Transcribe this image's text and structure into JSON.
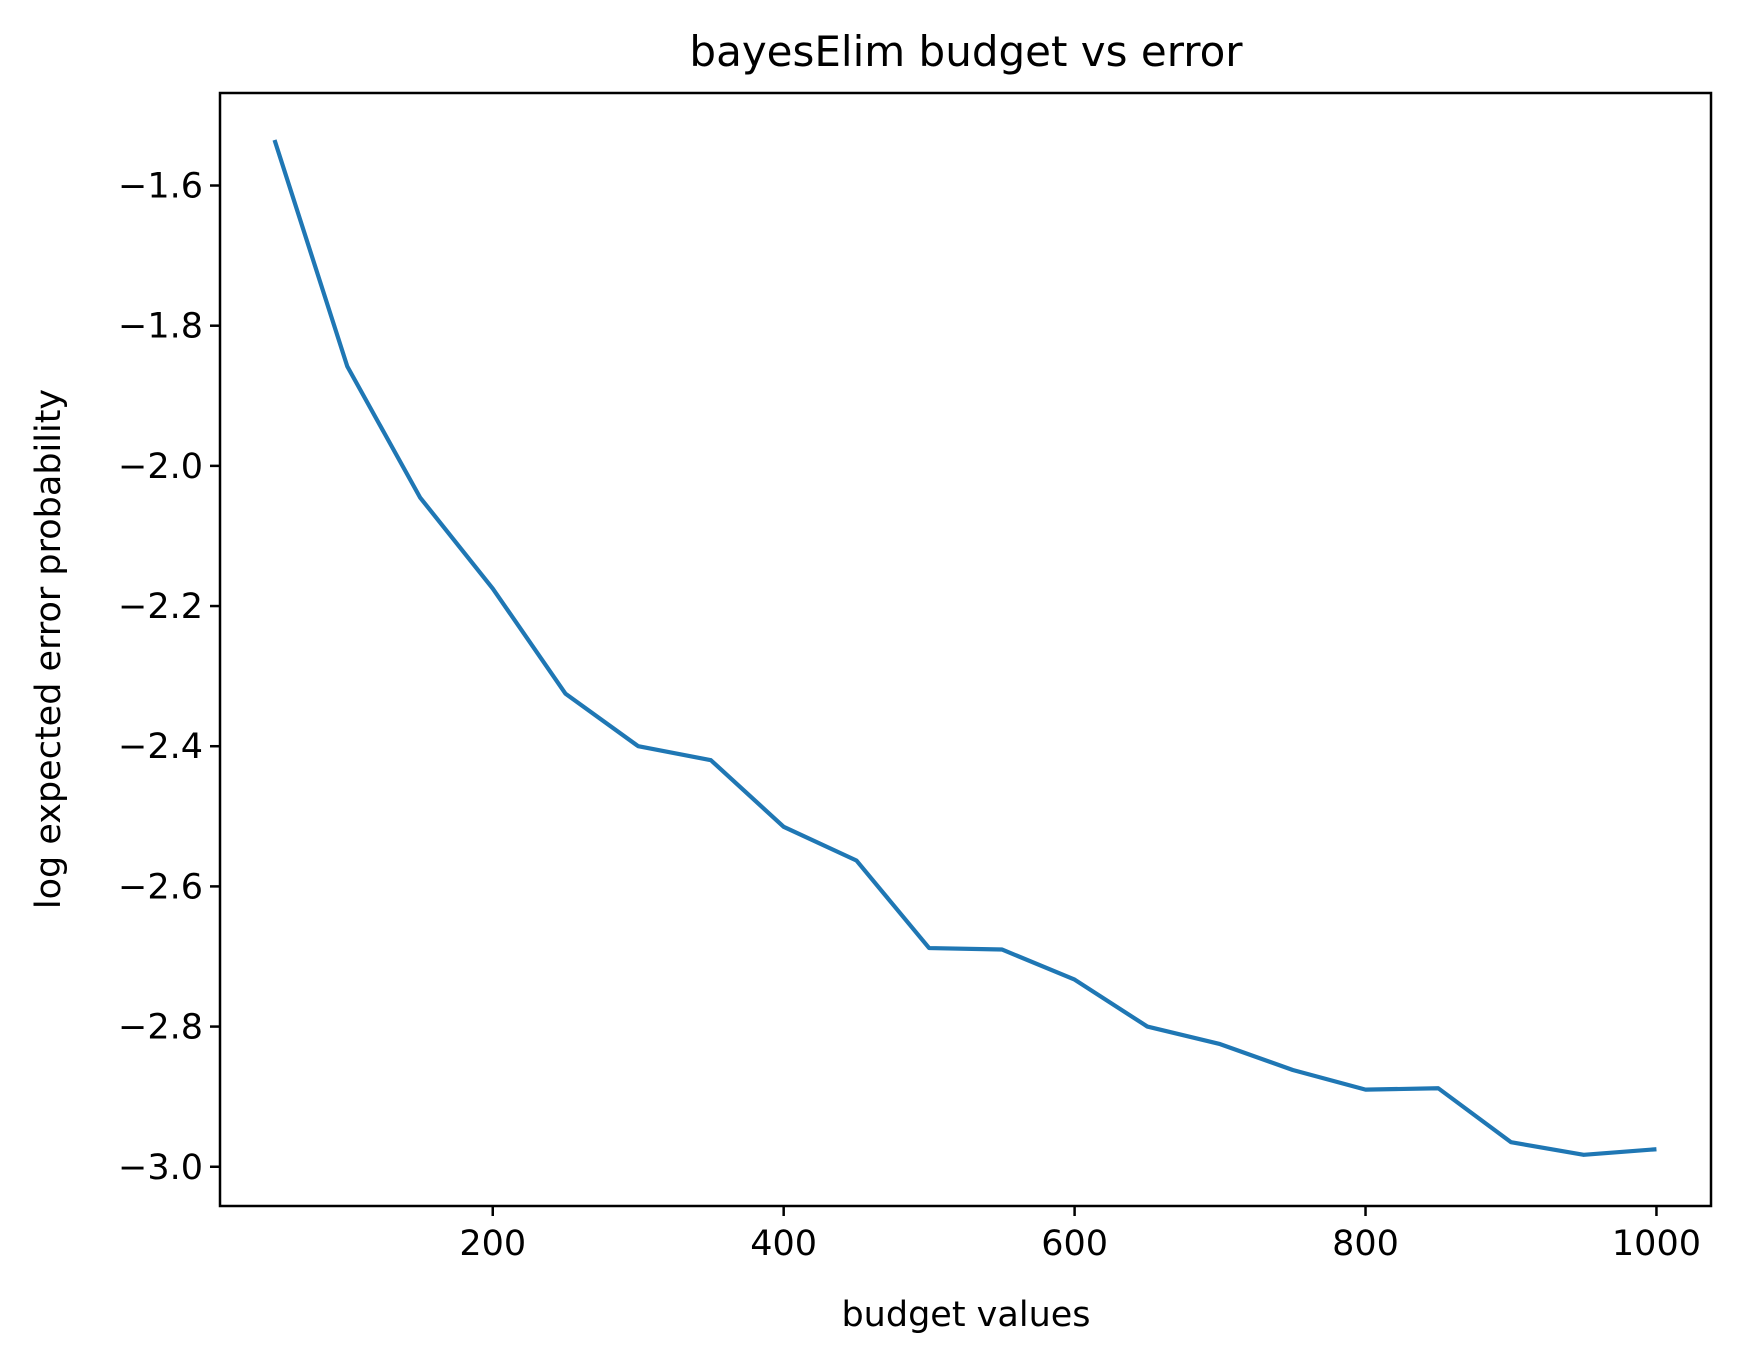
{
  "chart_data": {
    "type": "line",
    "title": "bayesElim budget vs error",
    "xlabel": "budget values",
    "ylabel": "log expected error probability",
    "xlim": [
      12.5,
      1037.5
    ],
    "ylim": [
      -3.056,
      -1.468
    ],
    "xticks": [
      200,
      400,
      600,
      800,
      1000
    ],
    "xtick_labels": [
      "200",
      "400",
      "600",
      "800",
      "1000"
    ],
    "yticks": [
      -1.6,
      -1.8,
      -2.0,
      -2.2,
      -2.4,
      -2.6,
      -2.8,
      -3.0
    ],
    "ytick_labels": [
      "−1.6",
      "−1.8",
      "−2.0",
      "−2.2",
      "−2.4",
      "−2.6",
      "−2.8",
      "−3.0"
    ],
    "grid": false,
    "series": [
      {
        "color": "#1f77b4",
        "x": [
          50,
          100,
          150,
          200,
          250,
          300,
          350,
          400,
          450,
          500,
          550,
          600,
          650,
          700,
          750,
          800,
          850,
          900,
          950,
          1000
        ],
        "y": [
          -1.535,
          -1.858,
          -2.045,
          -2.175,
          -2.325,
          -2.4,
          -2.42,
          -2.515,
          -2.563,
          -2.688,
          -2.69,
          -2.733,
          -2.8,
          -2.825,
          -2.862,
          -2.89,
          -2.888,
          -2.965,
          -2.983,
          -2.975
        ]
      }
    ]
  }
}
